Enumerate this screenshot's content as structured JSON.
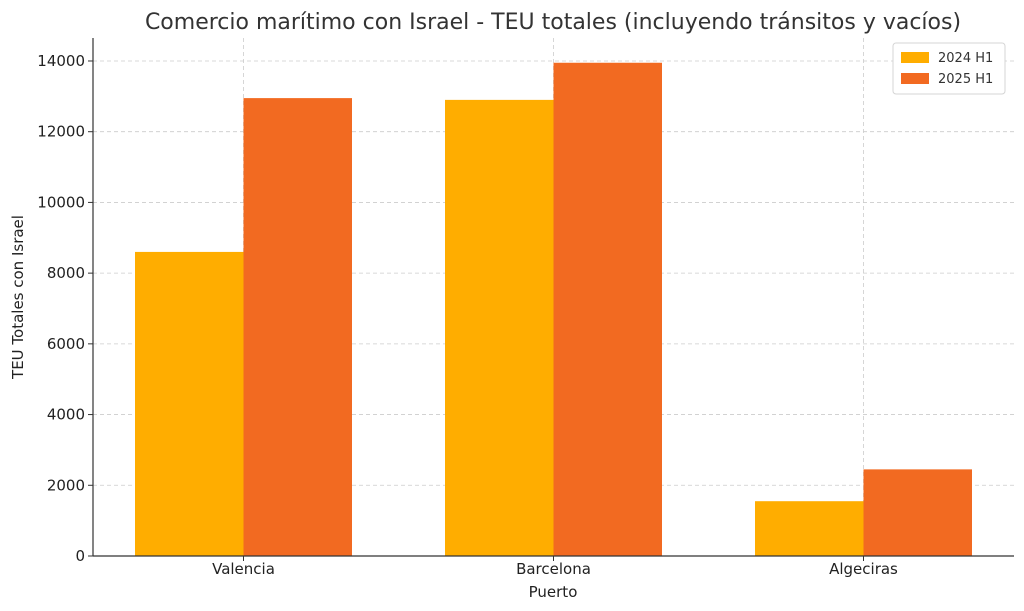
{
  "chart_data": {
    "type": "bar",
    "title": "Comercio marítimo con Israel - TEU totales (incluyendo tránsitos y vacíos)",
    "xlabel": "Puerto",
    "ylabel": "TEU Totales con Israel",
    "categories": [
      "Valencia",
      "Barcelona",
      "Algeciras"
    ],
    "series": [
      {
        "name": "2024 H1",
        "color": "#FFAD00",
        "values": [
          8600,
          12900,
          1550
        ]
      },
      {
        "name": "2025 H1",
        "color": "#F26A21",
        "values": [
          12950,
          13950,
          2450
        ]
      }
    ],
    "ylim": [
      0,
      14650
    ],
    "yticks": [
      0,
      2000,
      4000,
      6000,
      8000,
      10000,
      12000,
      14000
    ],
    "grid": true,
    "legend_position": "top-right"
  }
}
